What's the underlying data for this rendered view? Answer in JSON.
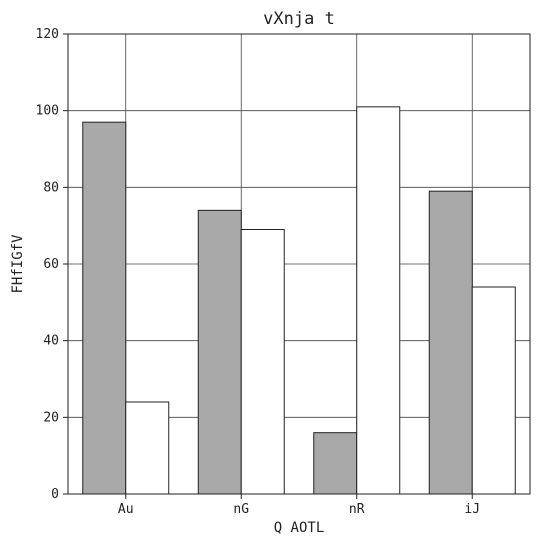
{
  "chart_data": {
    "type": "bar",
    "title": "vXnja t",
    "xlabel": "Q AOTL",
    "ylabel": "FHfIGfV",
    "categories": [
      "Au",
      "nG",
      "nR",
      "iJ"
    ],
    "series": [
      {
        "values": [
          97,
          74,
          16,
          79
        ],
        "color": "#a9a9a9"
      },
      {
        "values": [
          24,
          69,
          101,
          54
        ],
        "color": "#ffffff"
      }
    ],
    "ylim": [
      0,
      120
    ],
    "yticks": [
      0,
      20,
      40,
      60,
      80,
      100,
      120
    ],
    "grid": true,
    "legend": "none"
  }
}
